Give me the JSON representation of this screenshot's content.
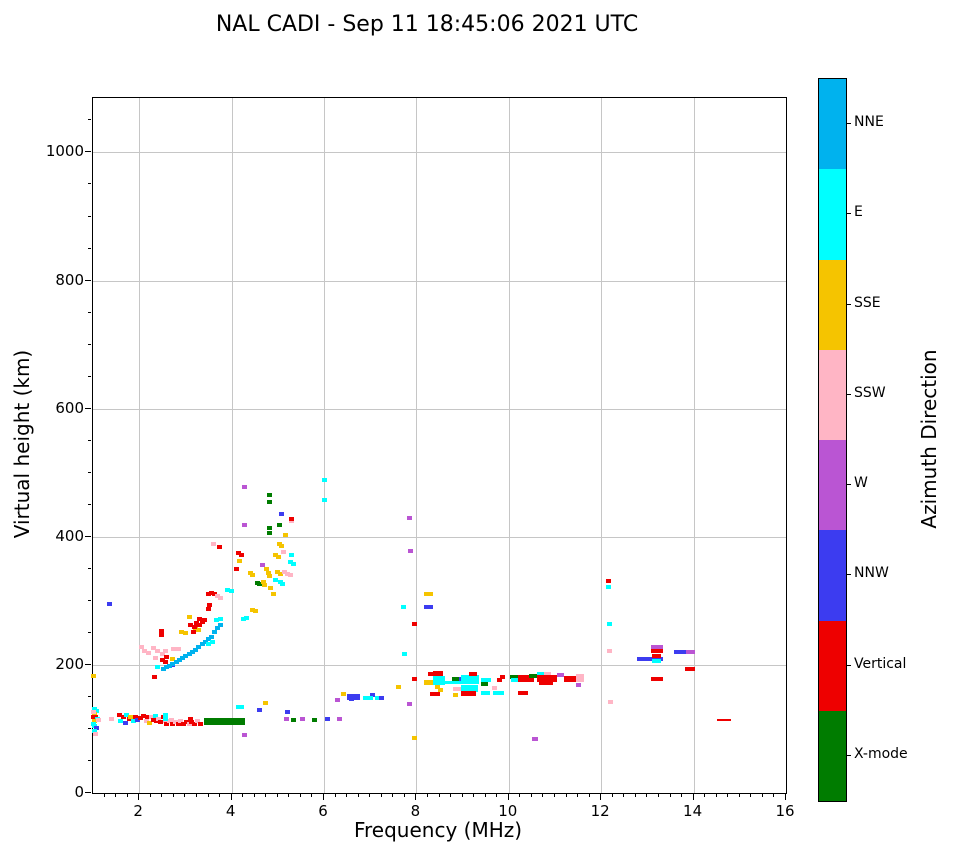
{
  "title": "NAL CADI - Sep 11 18:45:06 2021 UTC",
  "chart_data": {
    "type": "scatter",
    "title": "NAL CADI - Sep 11 18:45:06 2021 UTC",
    "xlabel": "Frequency (MHz)",
    "ylabel": "Virtual height (km)",
    "xlim": [
      1,
      16
    ],
    "ylim": [
      0,
      1085
    ],
    "xticks": [
      2,
      4,
      6,
      8,
      10,
      12,
      14,
      16
    ],
    "yticks": [
      0,
      200,
      400,
      600,
      800,
      1000
    ],
    "x_minor_step": 0.25,
    "y_minor_step": 50,
    "grid": true,
    "legend_position": "right-colorbar",
    "colorbar": {
      "label": "Azimuth Direction",
      "categories": [
        {
          "name": "NNE",
          "color": "#00B2EE"
        },
        {
          "name": "E",
          "color": "#00FFFF"
        },
        {
          "name": "SSE",
          "color": "#F5C400"
        },
        {
          "name": "SSW",
          "color": "#FFB5C5"
        },
        {
          "name": "W",
          "color": "#BA55D3"
        },
        {
          "name": "NNW",
          "color": "#3C3CF0"
        },
        {
          "name": "Vertical",
          "color": "#EE0000"
        },
        {
          "name": "X-mode",
          "color": "#007C00"
        }
      ]
    },
    "palette": {
      "NNE": "#00B2EE",
      "E": "#00FFFF",
      "SSE": "#F5C400",
      "SSW": "#FFB5C5",
      "W": "#BA55D3",
      "NNW": "#3C3CF0",
      "Vertical": "#EE0000",
      "X": "#007C00"
    },
    "units": {
      "points": "[frequency_MHz, virtual_height_km, azimuth_direction]"
    },
    "points": [
      [
        1.03,
        131,
        "E"
      ],
      [
        1.08,
        128,
        "E"
      ],
      [
        1.03,
        124,
        "SSE"
      ],
      [
        1.02,
        119,
        "Vertical"
      ],
      [
        1.06,
        118,
        "Vertical"
      ],
      [
        1.1,
        116,
        "E"
      ],
      [
        1.03,
        112,
        "SSE"
      ],
      [
        1.12,
        114,
        "SSW"
      ],
      [
        1.04,
        105,
        "E"
      ],
      [
        1.08,
        102,
        "NNW"
      ],
      [
        1.03,
        97,
        "E"
      ],
      [
        1.05,
        92,
        "SSW"
      ],
      [
        1.0,
        126,
        "SSW"
      ],
      [
        1.0,
        108,
        "E"
      ],
      [
        1.02,
        183,
        "SSE"
      ],
      [
        1.35,
        295,
        "NNW"
      ],
      [
        1.39,
        116,
        "SSW"
      ],
      [
        1.57,
        122,
        "Vertical"
      ],
      [
        1.6,
        113,
        "E"
      ],
      [
        1.65,
        118,
        "Vertical"
      ],
      [
        1.7,
        110,
        "NNW"
      ],
      [
        1.72,
        121,
        "E"
      ],
      [
        1.78,
        115,
        "Vertical"
      ],
      [
        1.82,
        118,
        "SSE"
      ],
      [
        1.88,
        112,
        "E"
      ],
      [
        1.92,
        118,
        "Vertical"
      ],
      [
        1.97,
        114,
        "NNW"
      ],
      [
        2.02,
        117,
        "Vertical"
      ],
      [
        2.1,
        120,
        "Vertical"
      ],
      [
        2.15,
        113,
        "SSW"
      ],
      [
        2.18,
        118,
        "Vertical"
      ],
      [
        2.22,
        110,
        "SSE"
      ],
      [
        2.26,
        118,
        "SSW"
      ],
      [
        2.3,
        114,
        "Vertical"
      ],
      [
        2.35,
        120,
        "E"
      ],
      [
        2.38,
        112,
        "Vertical"
      ],
      [
        2.42,
        116,
        "SSW"
      ],
      [
        2.47,
        111,
        "Vertical"
      ],
      [
        2.52,
        118,
        "Vertical"
      ],
      [
        2.56,
        113,
        "SSW"
      ],
      [
        2.6,
        108,
        "Vertical"
      ],
      [
        2.66,
        112,
        "SSW"
      ],
      [
        2.72,
        107,
        "Vertical"
      ],
      [
        2.78,
        111,
        "SSW"
      ],
      [
        2.85,
        108,
        "Vertical"
      ],
      [
        2.9,
        113,
        "SSW"
      ],
      [
        2.96,
        108,
        "Vertical"
      ],
      [
        3.02,
        111,
        "Vertical"
      ],
      [
        3.08,
        107,
        "SSW"
      ],
      [
        3.14,
        111,
        "Vertical"
      ],
      [
        3.2,
        108,
        "Vertical"
      ],
      [
        3.27,
        112,
        "SSW"
      ],
      [
        3.33,
        108,
        "Vertical"
      ],
      [
        3.45,
        113,
        "Vertical"
      ],
      [
        2.58,
        121,
        "E"
      ],
      [
        2.58,
        115,
        "E"
      ],
      [
        2.7,
        114,
        "SSW"
      ],
      [
        3.1,
        115,
        "Vertical"
      ],
      [
        4.16,
        134,
        "E"
      ],
      [
        4.22,
        134,
        "E"
      ],
      [
        4.27,
        91,
        "W"
      ],
      [
        4.6,
        130,
        "NNW"
      ],
      [
        4.74,
        141,
        "SSE"
      ],
      [
        5.22,
        127,
        "NNW"
      ],
      [
        5.18,
        116,
        "W"
      ],
      [
        5.33,
        114,
        "X"
      ],
      [
        5.54,
        116,
        "W"
      ],
      [
        5.8,
        114,
        "X"
      ],
      [
        6.08,
        116,
        "NNW"
      ],
      [
        6.33,
        116,
        "W"
      ],
      [
        7.84,
        139,
        "W"
      ],
      [
        7.95,
        86,
        "SSE"
      ],
      [
        6.3,
        145,
        "W"
      ],
      [
        6.43,
        155,
        "SSE"
      ],
      [
        6.6,
        146,
        "NNW"
      ],
      [
        7.05,
        153,
        "NNW"
      ],
      [
        7.15,
        148,
        "E"
      ],
      [
        7.25,
        149,
        "NNW"
      ],
      [
        7.62,
        166,
        "SSE"
      ],
      [
        7.73,
        291,
        "E"
      ],
      [
        7.75,
        217,
        "E"
      ],
      [
        7.85,
        430,
        "W"
      ],
      [
        7.88,
        378,
        "W"
      ],
      [
        7.95,
        264,
        "Vertical"
      ],
      [
        7.95,
        178,
        "Vertical"
      ],
      [
        2.05,
        228,
        "SSW"
      ],
      [
        2.12,
        222,
        "SSW"
      ],
      [
        2.2,
        218,
        "SSW"
      ],
      [
        2.32,
        226,
        "SSW"
      ],
      [
        2.4,
        222,
        "SSW"
      ],
      [
        2.5,
        217,
        "SSW"
      ],
      [
        2.56,
        222,
        "SSW"
      ],
      [
        2.35,
        211,
        "SSW"
      ],
      [
        2.75,
        225,
        "SSW"
      ],
      [
        2.85,
        225,
        "SSW"
      ],
      [
        2.33,
        181,
        "Vertical"
      ],
      [
        2.4,
        197,
        "E"
      ],
      [
        2.49,
        253,
        "Vertical"
      ],
      [
        2.49,
        247,
        "Vertical"
      ],
      [
        2.5,
        208,
        "Vertical"
      ],
      [
        2.6,
        213,
        "Vertical"
      ],
      [
        2.56,
        205,
        "Vertical"
      ],
      [
        2.73,
        200,
        "NNW"
      ],
      [
        2.73,
        209,
        "SSE"
      ],
      [
        2.52,
        194,
        "NNE"
      ],
      [
        2.59,
        196,
        "NNE"
      ],
      [
        2.66,
        199,
        "NNE"
      ],
      [
        2.73,
        202,
        "NNE"
      ],
      [
        2.8,
        205,
        "NNE"
      ],
      [
        2.87,
        208,
        "NNE"
      ],
      [
        2.94,
        211,
        "NNE"
      ],
      [
        3.01,
        214,
        "NNE"
      ],
      [
        3.08,
        217,
        "NNE"
      ],
      [
        3.15,
        220,
        "NNE"
      ],
      [
        3.22,
        224,
        "NNE"
      ],
      [
        3.29,
        228,
        "NNE"
      ],
      [
        3.36,
        232,
        "NNE"
      ],
      [
        3.43,
        236,
        "NNE"
      ],
      [
        3.5,
        240,
        "NNE"
      ],
      [
        3.57,
        244,
        "NNE"
      ],
      [
        3.64,
        252,
        "NNE"
      ],
      [
        3.7,
        258,
        "NNE"
      ],
      [
        3.75,
        263,
        "NNE"
      ],
      [
        3.5,
        232,
        "E"
      ],
      [
        3.58,
        236,
        "E"
      ],
      [
        3.68,
        270,
        "E"
      ],
      [
        3.76,
        272,
        "E"
      ],
      [
        3.92,
        317,
        "E"
      ],
      [
        4.0,
        315,
        "E"
      ],
      [
        4.25,
        271,
        "E"
      ],
      [
        4.32,
        273,
        "E"
      ],
      [
        2.92,
        252,
        "SSE"
      ],
      [
        3.0,
        250,
        "SSE"
      ],
      [
        3.08,
        275,
        "SSE"
      ],
      [
        3.22,
        256,
        "SSE"
      ],
      [
        3.28,
        254,
        "SSE"
      ],
      [
        3.1,
        262,
        "Vertical"
      ],
      [
        3.2,
        259,
        "Vertical"
      ],
      [
        3.25,
        265,
        "Vertical"
      ],
      [
        3.31,
        262,
        "Vertical"
      ],
      [
        3.36,
        267,
        "Vertical"
      ],
      [
        3.3,
        272,
        "Vertical"
      ],
      [
        3.42,
        270,
        "Vertical"
      ],
      [
        3.18,
        252,
        "Vertical"
      ],
      [
        3.5,
        288,
        "Vertical"
      ],
      [
        3.53,
        294,
        "Vertical"
      ],
      [
        3.5,
        310,
        "Vertical"
      ],
      [
        3.56,
        313,
        "Vertical"
      ],
      [
        3.62,
        310,
        "Vertical"
      ],
      [
        3.7,
        308,
        "SSW"
      ],
      [
        3.76,
        305,
        "SSW"
      ],
      [
        3.6,
        388,
        "SSW"
      ],
      [
        3.73,
        384,
        "Vertical"
      ],
      [
        4.15,
        375,
        "Vertical"
      ],
      [
        4.22,
        372,
        "Vertical"
      ],
      [
        4.18,
        362,
        "SSE"
      ],
      [
        4.1,
        349,
        "Vertical"
      ],
      [
        4.4,
        344,
        "SSE"
      ],
      [
        4.46,
        341,
        "SSE"
      ],
      [
        4.55,
        328,
        "X"
      ],
      [
        4.61,
        326,
        "X"
      ],
      [
        4.67,
        356,
        "W"
      ],
      [
        4.75,
        350,
        "SSE"
      ],
      [
        4.79,
        344,
        "SSE"
      ],
      [
        4.83,
        338,
        "SSE"
      ],
      [
        4.72,
        325,
        "SSE"
      ],
      [
        4.45,
        286,
        "SSE"
      ],
      [
        4.51,
        284,
        "SSE"
      ],
      [
        4.7,
        330,
        "SSE"
      ],
      [
        4.85,
        320,
        "SSE"
      ],
      [
        4.9,
        310,
        "SSE"
      ],
      [
        4.95,
        332,
        "E"
      ],
      [
        5.05,
        330,
        "E"
      ],
      [
        5.11,
        327,
        "E"
      ],
      [
        5.0,
        345,
        "SSE"
      ],
      [
        5.06,
        342,
        "SSE"
      ],
      [
        5.15,
        345,
        "SSW"
      ],
      [
        5.22,
        342,
        "SSW"
      ],
      [
        5.28,
        340,
        "SSW"
      ],
      [
        5.28,
        360,
        "E"
      ],
      [
        5.34,
        358,
        "E"
      ],
      [
        4.95,
        371,
        "SSE"
      ],
      [
        5.01,
        368,
        "SSE"
      ],
      [
        5.12,
        377,
        "SSW"
      ],
      [
        5.3,
        372,
        "E"
      ],
      [
        5.03,
        388,
        "SSE"
      ],
      [
        5.08,
        385,
        "SSE"
      ],
      [
        5.07,
        436,
        "NNW"
      ],
      [
        5.29,
        425,
        "SSW"
      ],
      [
        5.29,
        428,
        "Vertical"
      ],
      [
        4.27,
        478,
        "W"
      ],
      [
        4.27,
        419,
        "W"
      ],
      [
        4.81,
        466,
        "X"
      ],
      [
        4.81,
        455,
        "X"
      ],
      [
        4.81,
        413,
        "X"
      ],
      [
        4.81,
        406,
        "X"
      ],
      [
        5.03,
        419,
        "X"
      ],
      [
        5.16,
        403,
        "SSE"
      ],
      [
        6.02,
        489,
        "E"
      ],
      [
        6.02,
        458,
        "E"
      ],
      [
        8.3,
        186,
        "Vertical"
      ],
      [
        8.45,
        166,
        "SSE"
      ],
      [
        8.52,
        161,
        "SSE"
      ],
      [
        8.95,
        178,
        "NNW"
      ],
      [
        8.85,
        163,
        "SSW"
      ],
      [
        8.95,
        163,
        "SSW"
      ],
      [
        8.35,
        155,
        "Vertical"
      ],
      [
        8.45,
        155,
        "Vertical"
      ],
      [
        8.85,
        153,
        "SSE"
      ],
      [
        9.8,
        177,
        "Vertical"
      ],
      [
        9.87,
        181,
        "Vertical"
      ],
      [
        9.7,
        164,
        "SSW"
      ],
      [
        12.15,
        331,
        "Vertical"
      ],
      [
        12.15,
        322,
        "E"
      ],
      [
        12.17,
        264,
        "E"
      ],
      [
        12.17,
        222,
        "SSW"
      ],
      [
        12.2,
        142,
        "SSW"
      ],
      [
        11.5,
        168,
        "W"
      ]
    ],
    "bars": [
      [
        3.4,
        4.28,
        111,
        "X",
        7
      ],
      [
        6.5,
        6.78,
        150,
        "NNW",
        6
      ],
      [
        6.85,
        7.05,
        148,
        "E",
        4
      ],
      [
        8.16,
        8.36,
        311,
        "SSE",
        4
      ],
      [
        8.16,
        8.36,
        291,
        "NNW",
        4
      ],
      [
        8.36,
        8.58,
        186,
        "Vertical",
        5
      ],
      [
        8.16,
        8.36,
        173,
        "SSE",
        5
      ],
      [
        8.36,
        8.62,
        176,
        "E",
        9
      ],
      [
        8.62,
        9.0,
        173,
        "E",
        3
      ],
      [
        8.78,
        8.92,
        178,
        "X",
        4
      ],
      [
        8.97,
        9.35,
        177,
        "E",
        9
      ],
      [
        8.97,
        9.33,
        163,
        "E",
        7
      ],
      [
        9.13,
        9.32,
        186,
        "Vertical",
        4
      ],
      [
        8.97,
        9.3,
        155,
        "Vertical",
        5
      ],
      [
        9.4,
        9.62,
        176,
        "E",
        4
      ],
      [
        9.4,
        9.56,
        170,
        "X",
        4
      ],
      [
        9.4,
        9.6,
        156,
        "E",
        4
      ],
      [
        9.66,
        9.9,
        156,
        "E",
        4
      ],
      [
        10.03,
        10.2,
        181,
        "X",
        4
      ],
      [
        10.05,
        10.3,
        176,
        "E",
        4
      ],
      [
        10.2,
        10.55,
        178,
        "Vertical",
        7
      ],
      [
        10.2,
        10.42,
        156,
        "Vertical",
        4
      ],
      [
        10.43,
        10.6,
        183,
        "X",
        4
      ],
      [
        10.6,
        10.76,
        186,
        "E",
        4
      ],
      [
        10.76,
        10.92,
        186,
        "SSW",
        4
      ],
      [
        10.6,
        11.05,
        179,
        "Vertical",
        7
      ],
      [
        10.65,
        10.95,
        172,
        "Vertical",
        4
      ],
      [
        11.05,
        11.2,
        184,
        "W",
        4
      ],
      [
        11.2,
        11.46,
        178,
        "Vertical",
        6
      ],
      [
        11.46,
        11.62,
        180,
        "SSW",
        8
      ],
      [
        10.5,
        10.64,
        84,
        "W",
        4
      ],
      [
        12.78,
        13.33,
        209,
        "NNW",
        4
      ],
      [
        13.08,
        13.34,
        226,
        "W",
        6
      ],
      [
        13.08,
        13.34,
        221,
        "Vertical",
        4
      ],
      [
        13.1,
        13.3,
        214,
        "Vertical",
        4
      ],
      [
        13.1,
        13.3,
        206,
        "E",
        4
      ],
      [
        13.58,
        13.86,
        220,
        "NNW",
        4
      ],
      [
        13.84,
        14.02,
        220,
        "W",
        4
      ],
      [
        13.82,
        14.02,
        194,
        "Vertical",
        4
      ],
      [
        13.08,
        13.34,
        178,
        "Vertical",
        4
      ],
      [
        14.5,
        14.8,
        114,
        "Vertical",
        2
      ]
    ]
  }
}
